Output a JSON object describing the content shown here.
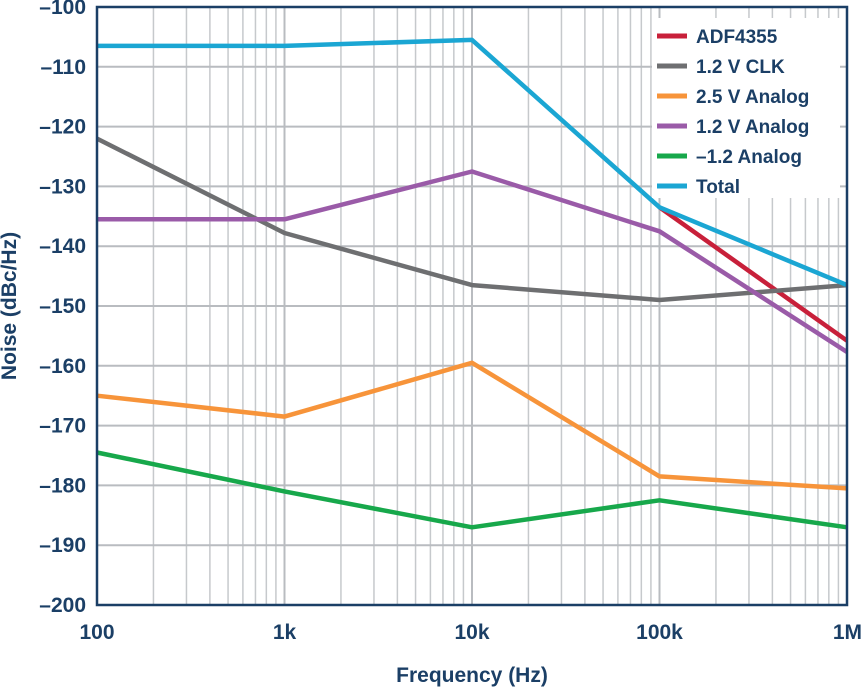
{
  "chart_data": {
    "type": "line",
    "xlabel": "Frequency (Hz)",
    "ylabel": "Noise (dBc/Hz)",
    "x_scale": "log",
    "xlim": [
      100,
      1000000
    ],
    "ylim": [
      -200,
      -100
    ],
    "grid": true,
    "legend_position": "top-right",
    "x_ticks": [
      {
        "value": 100,
        "label": "100"
      },
      {
        "value": 1000,
        "label": "1k"
      },
      {
        "value": 10000,
        "label": "10k"
      },
      {
        "value": 100000,
        "label": "100k"
      },
      {
        "value": 1000000,
        "label": "1M"
      }
    ],
    "y_ticks": [
      {
        "value": -100,
        "label": "–100"
      },
      {
        "value": -110,
        "label": "–110"
      },
      {
        "value": -120,
        "label": "–120"
      },
      {
        "value": -130,
        "label": "–130"
      },
      {
        "value": -140,
        "label": "–140"
      },
      {
        "value": -150,
        "label": "–150"
      },
      {
        "value": -160,
        "label": "–160"
      },
      {
        "value": -170,
        "label": "–170"
      },
      {
        "value": -180,
        "label": "–180"
      },
      {
        "value": -190,
        "label": "–190"
      },
      {
        "value": -200,
        "label": "–200"
      }
    ],
    "series": [
      {
        "name": "ADF4355",
        "color": "#c8203a",
        "x": [
          100000,
          1000000
        ],
        "y": [
          -133.5,
          -155.8
        ]
      },
      {
        "name": "1.2 V CLK",
        "color": "#6e6f71",
        "x": [
          100,
          1000,
          10000,
          100000,
          1000000
        ],
        "y": [
          -122,
          -137.8,
          -146.5,
          -149,
          -146.5
        ]
      },
      {
        "name": "2.5 V Analog",
        "color": "#f7943a",
        "x": [
          100,
          1000,
          10000,
          100000,
          1000000
        ],
        "y": [
          -165,
          -168.5,
          -159.5,
          -178.5,
          -180.5
        ]
      },
      {
        "name": "1.2 V Analog",
        "color": "#9a5ba8",
        "x": [
          100,
          1000,
          10000,
          100000,
          1000000
        ],
        "y": [
          -135.5,
          -135.5,
          -127.5,
          -137.5,
          -157.7
        ]
      },
      {
        "name": "–1.2 Analog",
        "color": "#17a84b",
        "x": [
          100,
          1000,
          10000,
          100000,
          1000000
        ],
        "y": [
          -174.5,
          -181,
          -187,
          -182.5,
          -187
        ]
      },
      {
        "name": "Total",
        "color": "#1ba6d3",
        "x": [
          100,
          1000,
          10000,
          100000,
          1000000
        ],
        "y": [
          -106.5,
          -106.5,
          -105.5,
          -133.5,
          -146.5
        ]
      }
    ]
  }
}
